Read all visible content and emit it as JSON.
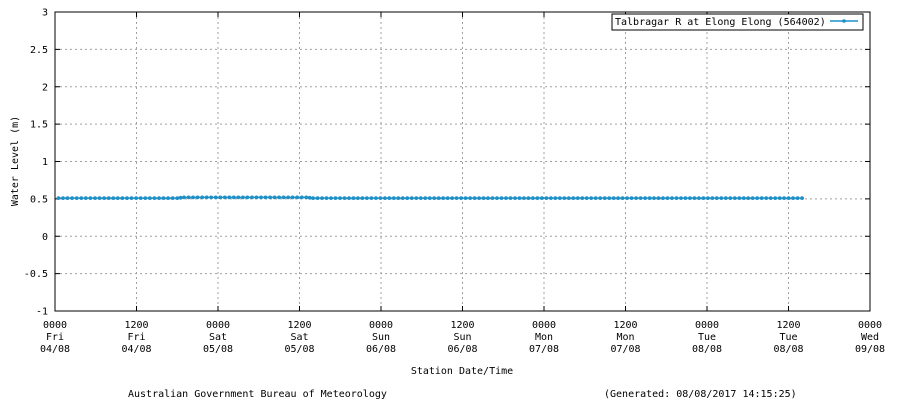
{
  "chart_data": {
    "type": "line",
    "ylabel": "Water Level (m)",
    "xlabel": "Station Date/Time",
    "ylim": [
      -1,
      3
    ],
    "yticks": [
      "3",
      "2.5",
      "2",
      "1.5",
      "1",
      "0.5",
      "0",
      "-0.5",
      "-1"
    ],
    "ytick_values": [
      3,
      2.5,
      2,
      1.5,
      1,
      0.5,
      0,
      -0.5,
      -1
    ],
    "xlim": [
      "2017-08-04 00:00",
      "2017-08-09 00:00"
    ],
    "xticks": [
      {
        "time": "0000",
        "day": "Fri",
        "date": "04/08"
      },
      {
        "time": "1200",
        "day": "Fri",
        "date": "04/08"
      },
      {
        "time": "0000",
        "day": "Sat",
        "date": "05/08"
      },
      {
        "time": "1200",
        "day": "Sat",
        "date": "05/08"
      },
      {
        "time": "0000",
        "day": "Sun",
        "date": "06/08"
      },
      {
        "time": "1200",
        "day": "Sun",
        "date": "06/08"
      },
      {
        "time": "0000",
        "day": "Mon",
        "date": "07/08"
      },
      {
        "time": "1200",
        "day": "Mon",
        "date": "07/08"
      },
      {
        "time": "0000",
        "day": "Tue",
        "date": "08/08"
      },
      {
        "time": "1200",
        "day": "Tue",
        "date": "08/08"
      },
      {
        "time": "0000",
        "day": "Wed",
        "date": "09/08"
      }
    ],
    "grid": true,
    "legend_position": "top-right",
    "series": [
      {
        "name": "Talbragar R at Elong Elong (564002)",
        "color": "#1e90c8",
        "points": [
          {
            "x": "2017-08-04 00:30",
            "y": 0.51
          },
          {
            "x": "2017-08-04 18:00",
            "y": 0.51
          },
          {
            "x": "2017-08-04 19:00",
            "y": 0.52
          },
          {
            "x": "2017-08-05 13:00",
            "y": 0.52
          },
          {
            "x": "2017-08-05 14:00",
            "y": 0.51
          },
          {
            "x": "2017-08-08 14:00",
            "y": 0.51
          }
        ]
      }
    ]
  },
  "footer": {
    "credit": "Australian Government Bureau of Meteorology",
    "generated": "(Generated: 08/08/2017 14:15:25)"
  }
}
